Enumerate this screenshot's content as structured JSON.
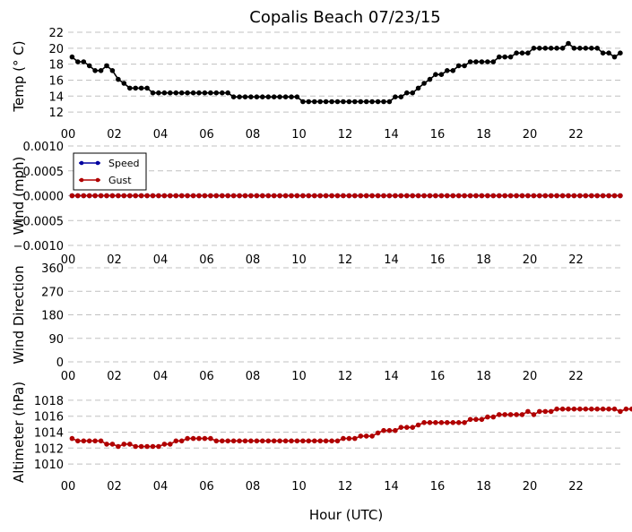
{
  "figure": {
    "title": "Copalis Beach 07/23/15",
    "xlabel": "Hour (UTC)",
    "x_tick_labels": [
      "00",
      "02",
      "04",
      "06",
      "08",
      "10",
      "12",
      "14",
      "16",
      "18",
      "20",
      "22"
    ]
  },
  "chart_data": [
    {
      "type": "line",
      "ylabel": "Temp (° C)",
      "ylim": [
        11,
        22
      ],
      "yticks": [
        12,
        14,
        16,
        18,
        20,
        22
      ],
      "xlim": [
        0,
        24
      ],
      "grid": true,
      "series": [
        {
          "color": "#000000",
          "marker": "circle",
          "values": [
            18.9,
            18.3,
            18.3,
            17.8,
            17.2,
            17.2,
            17.8,
            17.2,
            16.1,
            15.6,
            15.0,
            15.0,
            15.0,
            15.0,
            14.4,
            14.4,
            14.4,
            14.4,
            14.4,
            14.4,
            14.4,
            14.4,
            14.4,
            14.4,
            14.4,
            14.4,
            14.4,
            14.4,
            13.9,
            13.9,
            13.9,
            13.9,
            13.9,
            13.9,
            13.9,
            13.9,
            13.9,
            13.9,
            13.9,
            13.9,
            13.3,
            13.3,
            13.3,
            13.3,
            13.3,
            13.3,
            13.3,
            13.3,
            13.3,
            13.3,
            13.3,
            13.3,
            13.3,
            13.3,
            13.3,
            13.3,
            13.9,
            13.9,
            14.4,
            14.4,
            15.0,
            15.6,
            16.1,
            16.7,
            16.7,
            17.2,
            17.2,
            17.8,
            17.8,
            18.3,
            18.3,
            18.3,
            18.3,
            18.3,
            18.9,
            18.9,
            18.9,
            19.4,
            19.4,
            19.4,
            20.0,
            20.0,
            20.0,
            20.0,
            20.0,
            20.0,
            20.6,
            20.0,
            20.0,
            20.0,
            20.0,
            20.0,
            19.4,
            19.4,
            18.9,
            19.4
          ]
        }
      ]
    },
    {
      "type": "line",
      "ylabel": "Wind (mph)",
      "ylim": [
        -0.001,
        0.001
      ],
      "ytick_labels": [
        "0.0010",
        "0.0005",
        "0.0000",
        "−0.0005",
        "−0.0010"
      ],
      "xlim": [
        0,
        24
      ],
      "grid": true,
      "legend": "upper-left",
      "series": [
        {
          "name": "Speed",
          "color": "#0000a0",
          "value": 0.0,
          "count": 96
        },
        {
          "name": "Gust",
          "color": "#b00000",
          "value": 0.0,
          "count": 96
        }
      ]
    },
    {
      "type": "scatter",
      "ylabel": "Wind Direction",
      "ylim": [
        0,
        360
      ],
      "yticks": [
        0,
        90,
        180,
        270,
        360
      ],
      "xlim": [
        0,
        24
      ],
      "grid": true,
      "series": []
    },
    {
      "type": "line",
      "ylabel": "Altimeter (hPa)",
      "ylim": [
        1009,
        1019
      ],
      "yticks": [
        1010,
        1012,
        1014,
        1016,
        1018
      ],
      "xlim": [
        0,
        24
      ],
      "grid": true,
      "series": [
        {
          "color": "#b00000",
          "marker": "circle",
          "values": [
            1013.2,
            1012.9,
            1012.9,
            1012.9,
            1012.9,
            1012.9,
            1012.5,
            1012.5,
            1012.2,
            1012.5,
            1012.5,
            1012.2,
            1012.2,
            1012.2,
            1012.2,
            1012.2,
            1012.5,
            1012.5,
            1012.9,
            1012.9,
            1013.2,
            1013.2,
            1013.2,
            1013.2,
            1013.2,
            1012.9,
            1012.9,
            1012.9,
            1012.9,
            1012.9,
            1012.9,
            1012.9,
            1012.9,
            1012.9,
            1012.9,
            1012.9,
            1012.9,
            1012.9,
            1012.9,
            1012.9,
            1012.9,
            1012.9,
            1012.9,
            1012.9,
            1012.9,
            1012.9,
            1012.9,
            1013.2,
            1013.2,
            1013.2,
            1013.5,
            1013.5,
            1013.5,
            1013.9,
            1014.2,
            1014.2,
            1014.2,
            1014.6,
            1014.6,
            1014.6,
            1014.9,
            1015.2,
            1015.2,
            1015.2,
            1015.2,
            1015.2,
            1015.2,
            1015.2,
            1015.2,
            1015.6,
            1015.6,
            1015.6,
            1015.9,
            1015.9,
            1016.2,
            1016.2,
            1016.2,
            1016.2,
            1016.2,
            1016.6,
            1016.2,
            1016.6,
            1016.6,
            1016.6,
            1016.9,
            1016.9,
            1016.9,
            1016.9,
            1016.9,
            1016.9,
            1016.9,
            1016.9,
            1016.9,
            1016.9,
            1016.9,
            1016.6,
            1016.9,
            1016.9
          ]
        }
      ]
    }
  ]
}
